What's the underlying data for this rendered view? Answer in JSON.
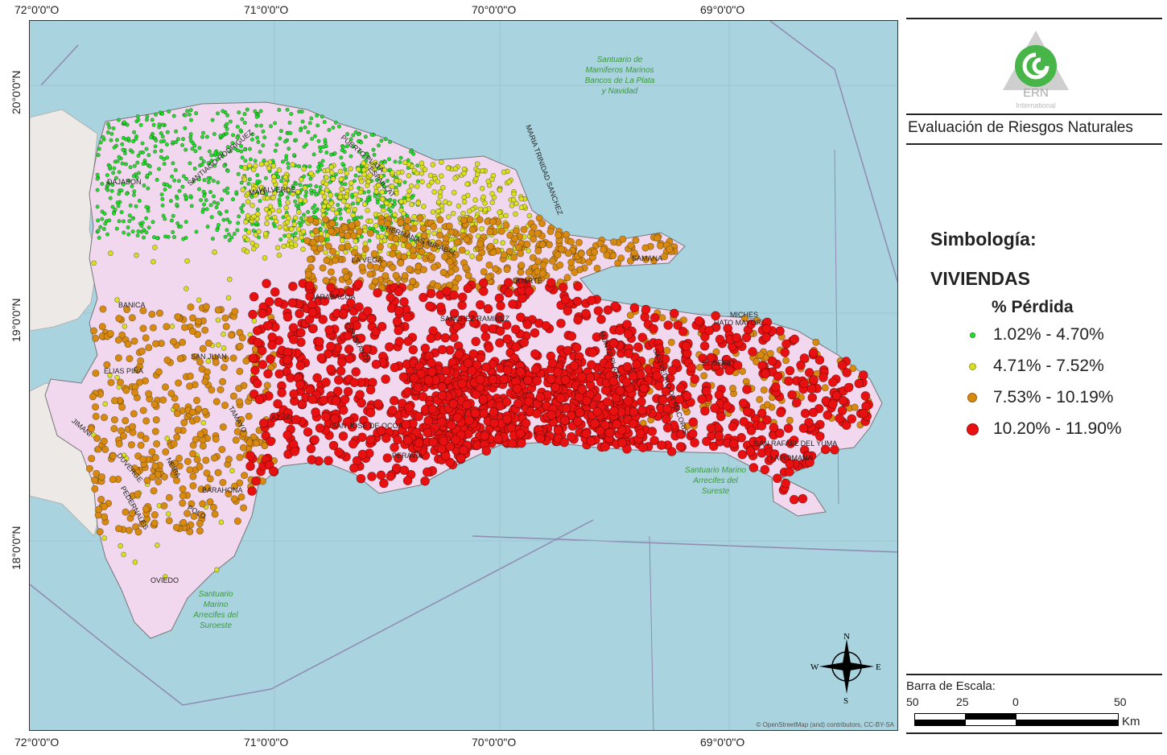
{
  "grid": {
    "lon_labels": [
      "72°0'0\"O",
      "71°0'0\"O",
      "70°0'0\"O",
      "69°0'0\"O"
    ],
    "lat_labels": [
      "20°0'0\"N",
      "19°0'0\"N",
      "18°0'0\"N"
    ]
  },
  "header": {
    "logo_text": "ERN",
    "logo_subtext": "International",
    "title": "Evaluación de Riesgos Naturales"
  },
  "legend": {
    "heading": "Simbología:",
    "layer": "VIVIENDAS",
    "field": "% Pérdida",
    "classes": [
      {
        "label": "1.02% - 4.70%",
        "color": "#22e02a"
      },
      {
        "label": "4.71% - 7.52%",
        "color": "#d8e020"
      },
      {
        "label": "7.53% - 10.19%",
        "color": "#d88a10"
      },
      {
        "label": "10.20% - 11.90%",
        "color": "#e81010"
      }
    ]
  },
  "scale": {
    "title": "Barra de Escala:",
    "ticks": [
      "50",
      "25",
      "0",
      "50"
    ],
    "unit": "Km"
  },
  "north_arrow": {
    "n": "N",
    "s": "S",
    "e": "E",
    "w": "W"
  },
  "colors": {
    "sea": "#a9d3df",
    "land": "#f2d8ee",
    "haiti": "#ece9e6"
  },
  "sanctuaries": [
    "Santuario de Mamiferos Marinos Bancos de La Plata y Navidad",
    "Santuario Marino Arrecifes del Sureste",
    "Santuario Marino Arrecifes del Suroeste"
  ],
  "places": [
    "DAJABON",
    "SANTIAGO RODRIGUEZ",
    "VALVERDE",
    "PUERTO PLATA",
    "ESPAILLAT",
    "MAO",
    "SANTIAGO",
    "LA VEGA",
    "HERMANAS MIRABAL",
    "MARIA TRINIDAD SANCHEZ",
    "SAMANA",
    "SANCHEZ RAMIREZ",
    "DUARTE",
    "JARABACOA",
    "BANICA",
    "SAN JUAN",
    "ELIAS PIÑA",
    "AZUA",
    "SAN JOSE DE OCOA",
    "PERAVIA",
    "MONTE PLATA",
    "HATO MAYOR",
    "EL SEIBO",
    "MICHES",
    "SAN RAFAEL DEL YUMA",
    "LA ROMANA",
    "SAN PEDRO DE MACORIS",
    "TAMAYO",
    "DUVERGE",
    "NEIBA",
    "PEDERNALES",
    "POLO",
    "BARAHONA",
    "OVIEDO",
    "JIMANI",
    "CONSTANZA"
  ],
  "credit": "© OpenStreetMap (and) contributors, CC-BY-SA"
}
